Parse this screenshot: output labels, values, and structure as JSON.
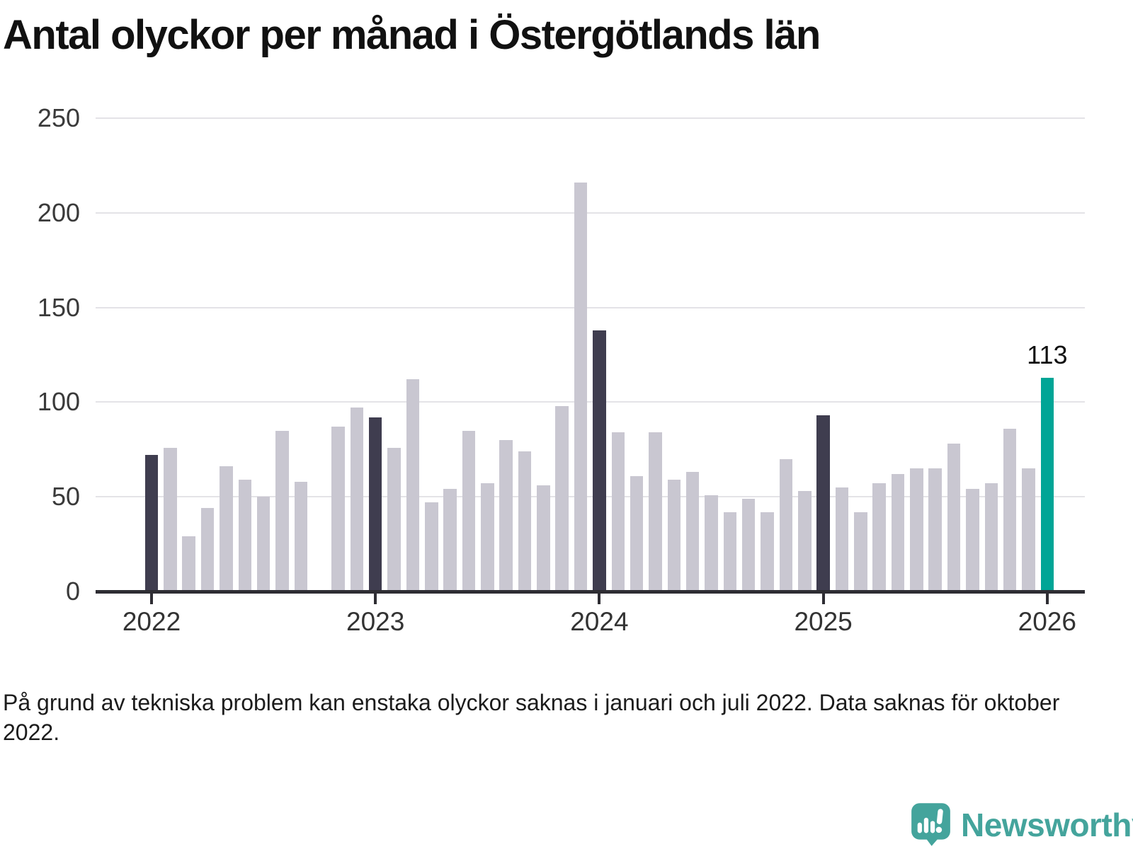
{
  "title": "Antal olyckor per månad i Östergötlands län",
  "footnote": "På grund av tekniska problem kan enstaka olyckor saknas i januari och juli 2022. Data saknas för oktober 2022.",
  "logo": {
    "text": "Newsworthy",
    "icon": "newsworthy-speech-bubble-chart-icon",
    "color": "#44a49c"
  },
  "chart_data": {
    "type": "bar",
    "title": "Antal olyckor per månad i Östergötlands län",
    "xlabel": "",
    "ylabel": "",
    "ylim": [
      0,
      250
    ],
    "yticks": [
      0,
      50,
      100,
      150,
      200,
      250
    ],
    "grid": "horizontal",
    "legend": "none",
    "months": [
      "2022-01",
      "2022-02",
      "2022-03",
      "2022-04",
      "2022-05",
      "2022-06",
      "2022-07",
      "2022-08",
      "2022-09",
      "2022-10",
      "2022-11",
      "2022-12",
      "2023-01",
      "2023-02",
      "2023-03",
      "2023-04",
      "2023-05",
      "2023-06",
      "2023-07",
      "2023-08",
      "2023-09",
      "2023-10",
      "2023-11",
      "2023-12",
      "2024-01",
      "2024-02",
      "2024-03",
      "2024-04",
      "2024-05",
      "2024-06",
      "2024-07",
      "2024-08",
      "2024-09",
      "2024-10",
      "2024-11",
      "2024-12",
      "2025-01",
      "2025-02",
      "2025-03",
      "2025-04",
      "2025-05",
      "2025-06",
      "2025-07",
      "2025-08",
      "2025-09",
      "2025-10",
      "2025-11",
      "2025-12",
      "2026-01"
    ],
    "values": [
      72,
      76,
      29,
      44,
      66,
      59,
      50,
      85,
      58,
      null,
      87,
      97,
      92,
      76,
      112,
      47,
      54,
      85,
      57,
      80,
      74,
      56,
      98,
      216,
      138,
      84,
      61,
      84,
      59,
      63,
      51,
      42,
      49,
      42,
      70,
      53,
      93,
      55,
      42,
      57,
      62,
      65,
      65,
      78,
      54,
      57,
      86,
      65,
      113
    ],
    "missing_months": [
      "2022-10"
    ],
    "xticks": [
      {
        "label": "2022",
        "month_index": 0
      },
      {
        "label": "2023",
        "month_index": 12
      },
      {
        "label": "2024",
        "month_index": 24
      },
      {
        "label": "2025",
        "month_index": 36
      },
      {
        "label": "2026",
        "month_index": 48
      }
    ],
    "annotation": {
      "text": "113",
      "month_index": 48
    },
    "colors": {
      "bar_default": "#c9c7d1",
      "bar_january": "#3f3d4f",
      "bar_latest": "#00a596",
      "grid": "#e4e3e7",
      "axis": "#2e2d33",
      "tick_label": "#3a3a3a",
      "title_text": "#111111"
    }
  }
}
